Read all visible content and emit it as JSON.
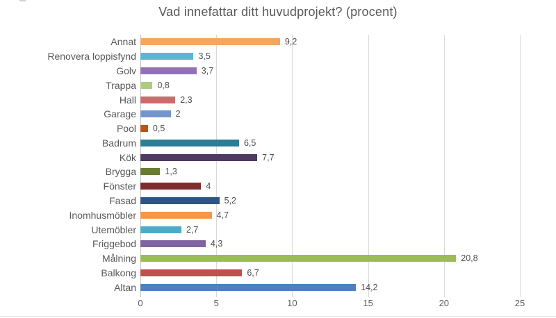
{
  "chart_data": {
    "type": "bar",
    "orientation": "horizontal",
    "title": "Vad innefattar ditt huvudprojekt? (procent)",
    "categories": [
      "Annat",
      "Renovera loppisfynd",
      "Golv",
      "Trappa",
      "Hall",
      "Garage",
      "Pool",
      "Badrum",
      "Kök",
      "Brygga",
      "Fönster",
      "Fasad",
      "Inomhusmöbler",
      "Utemöbler",
      "Friggebod",
      "Målning",
      "Balkong",
      "Altan"
    ],
    "values": [
      9.2,
      3.5,
      3.7,
      0.8,
      2.3,
      2,
      0.5,
      6.5,
      7.7,
      1.3,
      4,
      5.2,
      4.7,
      2.7,
      4.3,
      20.8,
      6.7,
      14.2
    ],
    "value_labels": [
      "9,2",
      "3,5",
      "3,7",
      "0,8",
      "2,3",
      "2",
      "0,5",
      "6,5",
      "7,7",
      "1,3",
      "4",
      "5,2",
      "4,7",
      "2,7",
      "4,3",
      "20,8",
      "6,7",
      "14,2"
    ],
    "bar_colors": [
      "#F5A55F",
      "#58B8CF",
      "#9272B4",
      "#AECB80",
      "#C96C6C",
      "#7295CB",
      "#BC5513",
      "#2C7D91",
      "#4D3B62",
      "#697B31",
      "#812C2C",
      "#2E5586",
      "#F79646",
      "#4BACC6",
      "#8064A2",
      "#9BBB59",
      "#C0504D",
      "#4F81BD"
    ],
    "xlabel": "",
    "ylabel": "",
    "xlim": [
      0,
      25
    ],
    "x_ticks": [
      "0",
      "5",
      "10",
      "15",
      "20",
      "25"
    ],
    "grid": true,
    "legend": "none",
    "gridline_color": "#d9d9d9",
    "text_color": "#595959",
    "background_color": "#ffffff"
  }
}
